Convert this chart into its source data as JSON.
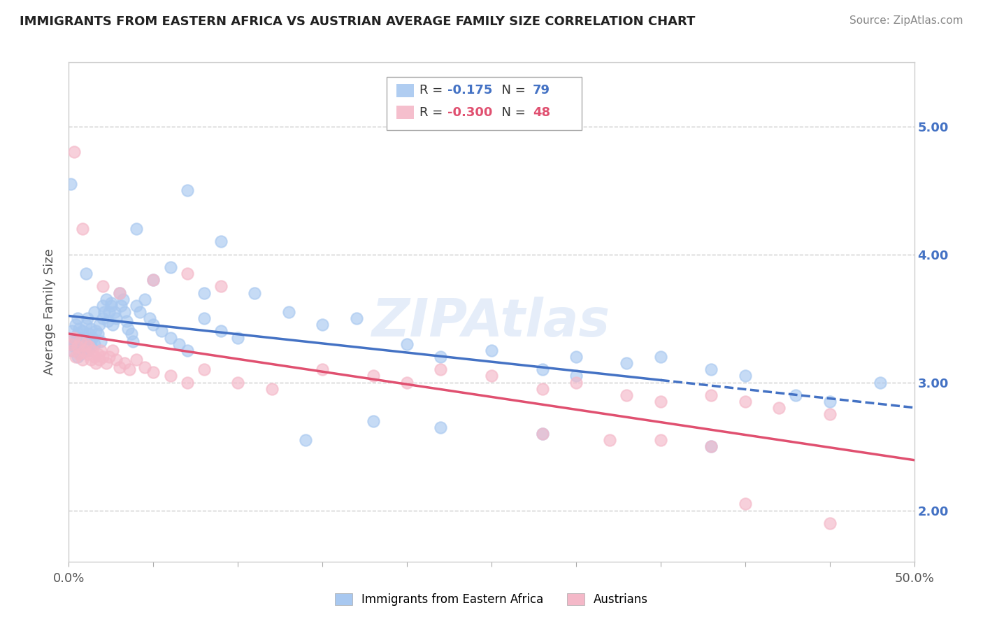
{
  "title": "IMMIGRANTS FROM EASTERN AFRICA VS AUSTRIAN AVERAGE FAMILY SIZE CORRELATION CHART",
  "source": "Source: ZipAtlas.com",
  "ylabel": "Average Family Size",
  "legend_label1": "Immigrants from Eastern Africa",
  "legend_label2": "Austrians",
  "R1": "-0.175",
  "N1": "79",
  "R2": "-0.300",
  "N2": "48",
  "color_blue": "#a8c8f0",
  "color_pink": "#f4b8c8",
  "color_blue_line": "#4472c4",
  "color_pink_line": "#e05070",
  "color_blue_text": "#4472c4",
  "color_pink_text": "#e05070",
  "yticks": [
    2.0,
    3.0,
    4.0,
    5.0
  ],
  "ymin": 1.6,
  "ymax": 5.5,
  "xmin": 0.0,
  "xmax": 0.5,
  "blue_scatter_x": [
    0.001,
    0.002,
    0.002,
    0.003,
    0.003,
    0.004,
    0.004,
    0.005,
    0.005,
    0.005,
    0.006,
    0.006,
    0.007,
    0.007,
    0.008,
    0.008,
    0.009,
    0.009,
    0.01,
    0.01,
    0.011,
    0.011,
    0.012,
    0.012,
    0.013,
    0.013,
    0.014,
    0.015,
    0.015,
    0.016,
    0.017,
    0.018,
    0.019,
    0.02,
    0.02,
    0.021,
    0.022,
    0.023,
    0.024,
    0.025,
    0.026,
    0.027,
    0.028,
    0.03,
    0.031,
    0.032,
    0.033,
    0.034,
    0.035,
    0.037,
    0.038,
    0.04,
    0.042,
    0.045,
    0.048,
    0.05,
    0.055,
    0.06,
    0.065,
    0.07,
    0.08,
    0.09,
    0.1,
    0.11,
    0.13,
    0.15,
    0.17,
    0.2,
    0.22,
    0.25,
    0.28,
    0.3,
    0.33,
    0.35,
    0.38,
    0.4,
    0.43,
    0.45,
    0.48
  ],
  "blue_scatter_y": [
    3.3,
    3.25,
    3.4,
    3.35,
    3.28,
    3.32,
    3.45,
    3.2,
    3.38,
    3.5,
    3.28,
    3.42,
    3.35,
    3.22,
    3.4,
    3.28,
    3.35,
    3.25,
    3.45,
    3.3,
    3.5,
    3.25,
    3.38,
    3.32,
    3.42,
    3.28,
    3.35,
    3.55,
    3.3,
    3.4,
    3.38,
    3.45,
    3.32,
    3.5,
    3.6,
    3.55,
    3.65,
    3.48,
    3.55,
    3.62,
    3.45,
    3.55,
    3.5,
    3.7,
    3.6,
    3.65,
    3.55,
    3.48,
    3.42,
    3.38,
    3.32,
    3.6,
    3.55,
    3.65,
    3.5,
    3.45,
    3.4,
    3.35,
    3.3,
    3.25,
    3.5,
    3.4,
    3.35,
    3.7,
    3.55,
    3.45,
    3.5,
    3.3,
    3.2,
    3.25,
    3.1,
    3.05,
    3.15,
    3.2,
    3.1,
    3.05,
    2.9,
    2.85,
    3.0
  ],
  "blue_scatter_y_extra": [
    4.55,
    3.85,
    3.6,
    4.2,
    4.5,
    3.8,
    4.1,
    3.9,
    3.7,
    2.55,
    2.6,
    2.5,
    2.65,
    2.7,
    3.2
  ],
  "blue_scatter_x_extra": [
    0.001,
    0.01,
    0.025,
    0.04,
    0.07,
    0.05,
    0.09,
    0.06,
    0.08,
    0.14,
    0.28,
    0.38,
    0.22,
    0.18,
    0.3
  ],
  "pink_scatter_x": [
    0.001,
    0.002,
    0.003,
    0.004,
    0.005,
    0.006,
    0.007,
    0.008,
    0.009,
    0.01,
    0.011,
    0.012,
    0.013,
    0.014,
    0.015,
    0.016,
    0.017,
    0.018,
    0.019,
    0.02,
    0.022,
    0.024,
    0.026,
    0.028,
    0.03,
    0.033,
    0.036,
    0.04,
    0.045,
    0.05,
    0.06,
    0.07,
    0.08,
    0.1,
    0.12,
    0.15,
    0.18,
    0.2,
    0.22,
    0.25,
    0.28,
    0.3,
    0.33,
    0.35,
    0.38,
    0.4,
    0.42,
    0.45
  ],
  "pink_scatter_y": [
    3.3,
    3.25,
    3.35,
    3.2,
    3.28,
    3.22,
    3.32,
    3.18,
    3.25,
    3.3,
    3.22,
    3.28,
    3.18,
    3.25,
    3.2,
    3.15,
    3.22,
    3.18,
    3.25,
    3.2,
    3.15,
    3.2,
    3.25,
    3.18,
    3.12,
    3.15,
    3.1,
    3.18,
    3.12,
    3.08,
    3.05,
    3.0,
    3.1,
    3.0,
    2.95,
    3.1,
    3.05,
    3.0,
    3.1,
    3.05,
    2.95,
    3.0,
    2.9,
    2.85,
    2.9,
    2.85,
    2.8,
    2.75
  ],
  "pink_scatter_y_extra": [
    4.8,
    4.2,
    3.75,
    3.7,
    3.8,
    3.85,
    3.75,
    2.05,
    1.9,
    2.55,
    2.5,
    2.55,
    2.6
  ],
  "pink_scatter_x_extra": [
    0.003,
    0.008,
    0.02,
    0.03,
    0.05,
    0.07,
    0.09,
    0.4,
    0.45,
    0.35,
    0.38,
    0.32,
    0.28
  ]
}
